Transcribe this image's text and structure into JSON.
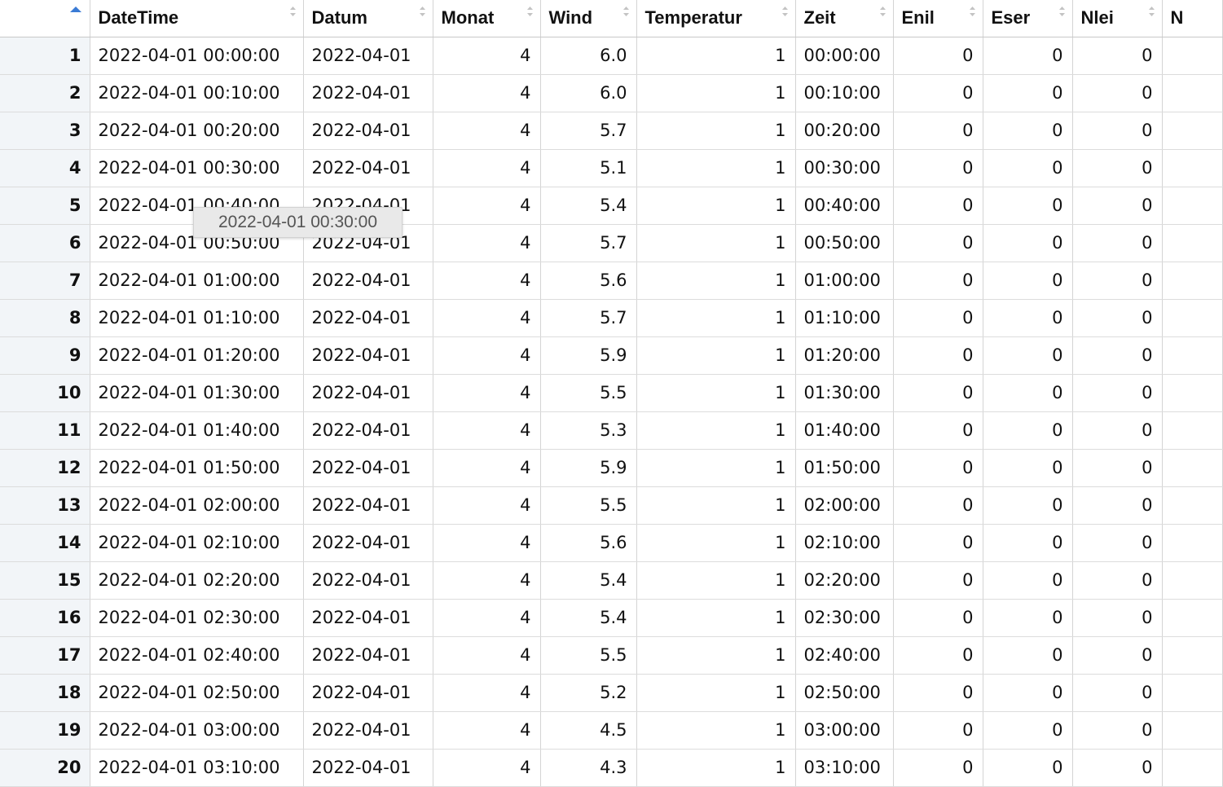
{
  "columns": [
    {
      "label": ""
    },
    {
      "label": "DateTime"
    },
    {
      "label": "Datum"
    },
    {
      "label": "Monat"
    },
    {
      "label": "Wind"
    },
    {
      "label": "Temperatur"
    },
    {
      "label": "Zeit"
    },
    {
      "label": "Enil"
    },
    {
      "label": "Eser"
    },
    {
      "label": "Nlei"
    },
    {
      "label": "N"
    }
  ],
  "rows": [
    {
      "row": "1",
      "datetime": "2022-04-01 00:00:00",
      "datum": "2022-04-01",
      "monat": "4",
      "wind": "6.0",
      "temperatur": "1",
      "zeit": "00:00:00",
      "enil": "0",
      "eser": "0",
      "nlei": "0"
    },
    {
      "row": "2",
      "datetime": "2022-04-01 00:10:00",
      "datum": "2022-04-01",
      "monat": "4",
      "wind": "6.0",
      "temperatur": "1",
      "zeit": "00:10:00",
      "enil": "0",
      "eser": "0",
      "nlei": "0"
    },
    {
      "row": "3",
      "datetime": "2022-04-01 00:20:00",
      "datum": "2022-04-01",
      "monat": "4",
      "wind": "5.7",
      "temperatur": "1",
      "zeit": "00:20:00",
      "enil": "0",
      "eser": "0",
      "nlei": "0"
    },
    {
      "row": "4",
      "datetime": "2022-04-01 00:30:00",
      "datum": "2022-04-01",
      "monat": "4",
      "wind": "5.1",
      "temperatur": "1",
      "zeit": "00:30:00",
      "enil": "0",
      "eser": "0",
      "nlei": "0"
    },
    {
      "row": "5",
      "datetime": "2022-04-01 00:40:00",
      "datum": "2022-04-01",
      "monat": "4",
      "wind": "5.4",
      "temperatur": "1",
      "zeit": "00:40:00",
      "enil": "0",
      "eser": "0",
      "nlei": "0"
    },
    {
      "row": "6",
      "datetime": "2022-04-01 00:50:00",
      "datum": "2022-04-01",
      "monat": "4",
      "wind": "5.7",
      "temperatur": "1",
      "zeit": "00:50:00",
      "enil": "0",
      "eser": "0",
      "nlei": "0"
    },
    {
      "row": "7",
      "datetime": "2022-04-01 01:00:00",
      "datum": "2022-04-01",
      "monat": "4",
      "wind": "5.6",
      "temperatur": "1",
      "zeit": "01:00:00",
      "enil": "0",
      "eser": "0",
      "nlei": "0"
    },
    {
      "row": "8",
      "datetime": "2022-04-01 01:10:00",
      "datum": "2022-04-01",
      "monat": "4",
      "wind": "5.7",
      "temperatur": "1",
      "zeit": "01:10:00",
      "enil": "0",
      "eser": "0",
      "nlei": "0"
    },
    {
      "row": "9",
      "datetime": "2022-04-01 01:20:00",
      "datum": "2022-04-01",
      "monat": "4",
      "wind": "5.9",
      "temperatur": "1",
      "zeit": "01:20:00",
      "enil": "0",
      "eser": "0",
      "nlei": "0"
    },
    {
      "row": "10",
      "datetime": "2022-04-01 01:30:00",
      "datum": "2022-04-01",
      "monat": "4",
      "wind": "5.5",
      "temperatur": "1",
      "zeit": "01:30:00",
      "enil": "0",
      "eser": "0",
      "nlei": "0"
    },
    {
      "row": "11",
      "datetime": "2022-04-01 01:40:00",
      "datum": "2022-04-01",
      "monat": "4",
      "wind": "5.3",
      "temperatur": "1",
      "zeit": "01:40:00",
      "enil": "0",
      "eser": "0",
      "nlei": "0"
    },
    {
      "row": "12",
      "datetime": "2022-04-01 01:50:00",
      "datum": "2022-04-01",
      "monat": "4",
      "wind": "5.9",
      "temperatur": "1",
      "zeit": "01:50:00",
      "enil": "0",
      "eser": "0",
      "nlei": "0"
    },
    {
      "row": "13",
      "datetime": "2022-04-01 02:00:00",
      "datum": "2022-04-01",
      "monat": "4",
      "wind": "5.5",
      "temperatur": "1",
      "zeit": "02:00:00",
      "enil": "0",
      "eser": "0",
      "nlei": "0"
    },
    {
      "row": "14",
      "datetime": "2022-04-01 02:10:00",
      "datum": "2022-04-01",
      "monat": "4",
      "wind": "5.6",
      "temperatur": "1",
      "zeit": "02:10:00",
      "enil": "0",
      "eser": "0",
      "nlei": "0"
    },
    {
      "row": "15",
      "datetime": "2022-04-01 02:20:00",
      "datum": "2022-04-01",
      "monat": "4",
      "wind": "5.4",
      "temperatur": "1",
      "zeit": "02:20:00",
      "enil": "0",
      "eser": "0",
      "nlei": "0"
    },
    {
      "row": "16",
      "datetime": "2022-04-01 02:30:00",
      "datum": "2022-04-01",
      "monat": "4",
      "wind": "5.4",
      "temperatur": "1",
      "zeit": "02:30:00",
      "enil": "0",
      "eser": "0",
      "nlei": "0"
    },
    {
      "row": "17",
      "datetime": "2022-04-01 02:40:00",
      "datum": "2022-04-01",
      "monat": "4",
      "wind": "5.5",
      "temperatur": "1",
      "zeit": "02:40:00",
      "enil": "0",
      "eser": "0",
      "nlei": "0"
    },
    {
      "row": "18",
      "datetime": "2022-04-01 02:50:00",
      "datum": "2022-04-01",
      "monat": "4",
      "wind": "5.2",
      "temperatur": "1",
      "zeit": "02:50:00",
      "enil": "0",
      "eser": "0",
      "nlei": "0"
    },
    {
      "row": "19",
      "datetime": "2022-04-01 03:00:00",
      "datum": "2022-04-01",
      "monat": "4",
      "wind": "4.5",
      "temperatur": "1",
      "zeit": "03:00:00",
      "enil": "0",
      "eser": "0",
      "nlei": "0"
    },
    {
      "row": "20",
      "datetime": "2022-04-01 03:10:00",
      "datum": "2022-04-01",
      "monat": "4",
      "wind": "4.3",
      "temperatur": "1",
      "zeit": "03:10:00",
      "enil": "0",
      "eser": "0",
      "nlei": "0"
    }
  ],
  "tooltip": {
    "text": "2022-04-01 00:30:00"
  },
  "colors": {
    "sort_active": "#3a7bd5",
    "rownum_bg": "#f2f5f8",
    "grid": "#d4d4d4"
  }
}
